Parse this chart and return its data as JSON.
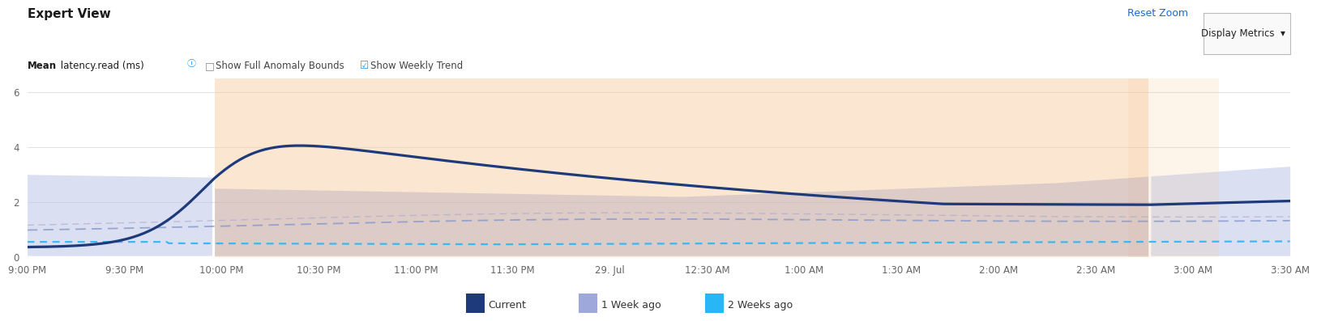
{
  "title": "Expert View",
  "metric_label_bold": "Mean",
  "metric_label_rest": " latency.read (ms)",
  "checkbox1": "Show Full Anomaly Bounds",
  "checkbox2": "Show Weekly Trend",
  "reset_zoom": "Reset Zoom",
  "display_metrics": "Display Metrics",
  "x_labels": [
    "9:00 PM",
    "9:30 PM",
    "10:00 PM",
    "10:30 PM",
    "11:00 PM",
    "11:30 PM",
    "29. Jul",
    "12:30 AM",
    "1:00 AM",
    "1:30 AM",
    "2:00 AM",
    "2:30 AM",
    "3:00 AM",
    "3:30 AM"
  ],
  "yticks": [
    0,
    2,
    4,
    6
  ],
  "ylim": [
    0,
    6.5
  ],
  "bg_color": "#ffffff",
  "current_color": "#1e3a7a",
  "week1_band_color": "#bcc5e8",
  "week1_line_color": "#8a9bcc",
  "week2_line_color": "#29b6f6",
  "week3_line_color": "#7ab0cc",
  "anomaly_orange_color": "#f5c99a",
  "anomaly_purple_color": "#a89ab8",
  "right_blue_color": "#bcc5e8",
  "legend_current_color": "#1e3a7a",
  "legend_week1_color": "#9fa8da",
  "legend_week2_color": "#29b6f6",
  "legend_labels": [
    "Current",
    "1 Week ago",
    "2 Weeks ago"
  ],
  "grid_color": "#dddddd",
  "tick_color": "#666666"
}
